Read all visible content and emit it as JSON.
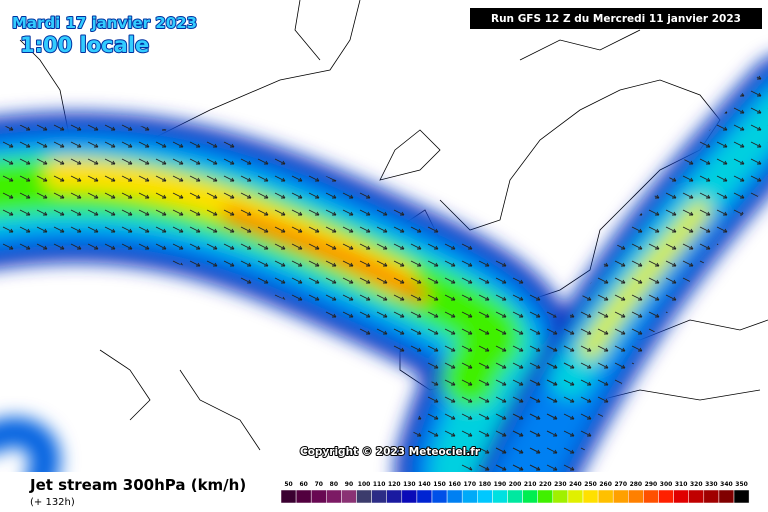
{
  "header": {
    "date": "Mardi 17 janvier 2023",
    "time": "1:00 locale",
    "run": "Run GFS 12 Z du Mercredi 11 janvier 2023"
  },
  "copyright": "Copyright © 2023 Meteociel.fr",
  "legend": {
    "title": "Jet stream 300hPa (km/h)",
    "lead": "(+ 132h)",
    "labels": [
      50,
      60,
      70,
      80,
      90,
      100,
      110,
      120,
      130,
      140,
      150,
      160,
      170,
      180,
      190,
      200,
      210,
      220,
      230,
      240,
      250,
      260,
      270,
      280,
      290,
      300,
      310,
      320,
      330,
      340,
      350
    ],
    "colors": [
      "#3a0030",
      "#52003f",
      "#680852",
      "#7c1a64",
      "#8a3274",
      "#3c3c6c",
      "#2c2c86",
      "#1a1aa0",
      "#0a0ab8",
      "#0024d2",
      "#0050e8",
      "#0080f2",
      "#00aaf8",
      "#00c8ff",
      "#00e0e0",
      "#00e8a0",
      "#00ee50",
      "#40f000",
      "#a0f000",
      "#e0f000",
      "#ffe000",
      "#ffc000",
      "#ffa000",
      "#ff8000",
      "#ff5000",
      "#ff2000",
      "#e00000",
      "#c00000",
      "#a00000",
      "#800000",
      "#000000"
    ]
  }
}
